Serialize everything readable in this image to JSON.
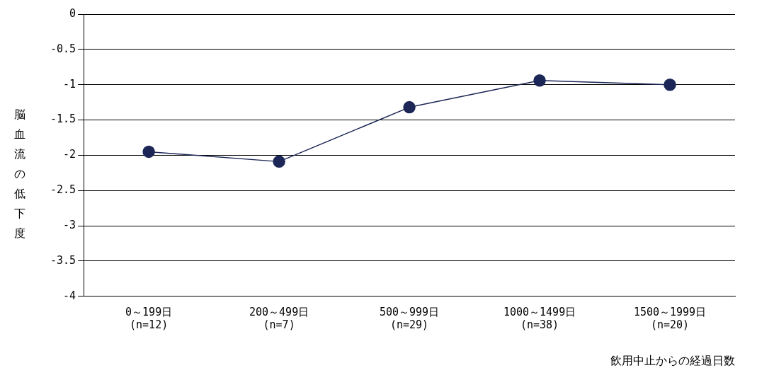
{
  "chart_data": {
    "type": "line",
    "xlabel": "飲用中止からの経過日数",
    "ylabel": "脳血流の低下度",
    "categories": [
      "0～199日\n(n=12)",
      "200～499日\n(n=7)",
      "500～999日\n(n=29)",
      "1000～1499日\n(n=38)",
      "1500～1999日\n(n=20)"
    ],
    "series": [
      {
        "color": "#1c2757",
        "values": [
          -1.95,
          -2.09,
          -1.32,
          -0.94,
          -1.0
        ]
      }
    ],
    "ylim": [
      -4,
      0
    ],
    "yticks": [
      0,
      -0.5,
      -1,
      -1.5,
      -2,
      -2.5,
      -3,
      -3.5,
      -4
    ],
    "grid": "y",
    "legend": false,
    "marker": "circle",
    "line_style": "solid"
  }
}
